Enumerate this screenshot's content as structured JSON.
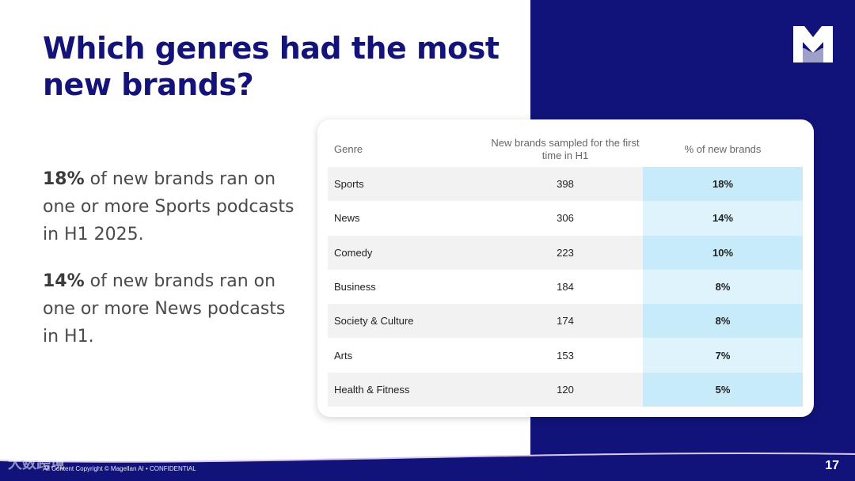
{
  "slide": {
    "title": "Which genres had the most new brands?",
    "page_number": "17",
    "footer": "All Content Copyright © Magellan AI • CONFIDENTIAL",
    "watermark": "大数跨境",
    "logo": "magellan-m-logo"
  },
  "points": [
    {
      "highlight": "18%",
      "text": " of new brands ran on one or more Sports podcasts in H1 2025."
    },
    {
      "highlight": "14%",
      "text": " of new brands ran on one or more News podcasts in H1."
    }
  ],
  "table": {
    "headers": {
      "genre": "Genre",
      "new_brands": "New brands sampled for the first time in H1",
      "pct": "% of new brands"
    },
    "rows": [
      {
        "genre": "Sports",
        "new_brands": "398",
        "pct": "18%"
      },
      {
        "genre": "News",
        "new_brands": "306",
        "pct": "14%"
      },
      {
        "genre": "Comedy",
        "new_brands": "223",
        "pct": "10%"
      },
      {
        "genre": "Business",
        "new_brands": "184",
        "pct": "8%"
      },
      {
        "genre": "Society & Culture",
        "new_brands": "174",
        "pct": "8%"
      },
      {
        "genre": "Arts",
        "new_brands": "153",
        "pct": "7%"
      },
      {
        "genre": "Health & Fitness",
        "new_brands": "120",
        "pct": "5%"
      }
    ]
  },
  "colors": {
    "navy": "#11137a",
    "title": "#13137a",
    "highlight_light": "#def3fb",
    "highlight_dark": "#c8ebfa"
  }
}
